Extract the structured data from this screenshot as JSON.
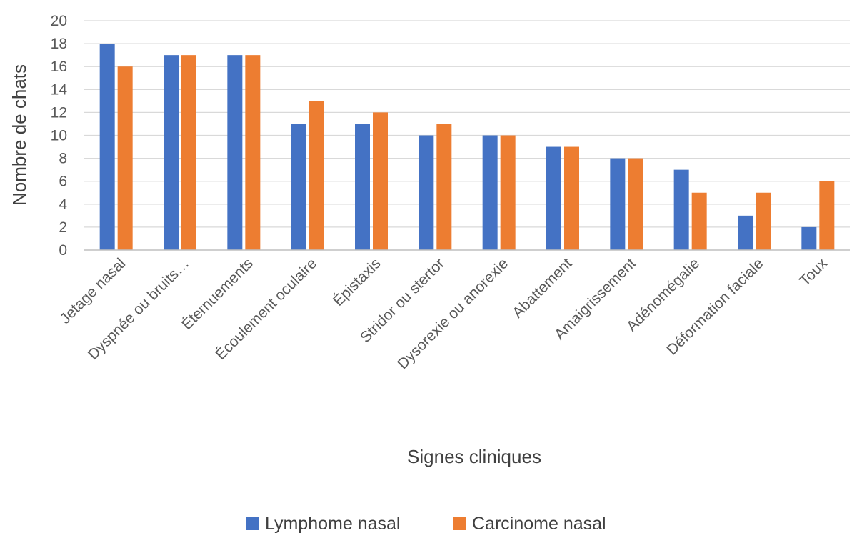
{
  "chart_data": {
    "type": "bar",
    "title": "",
    "xlabel": "Signes cliniques",
    "ylabel": "Nombre de chats",
    "ylim": [
      0,
      20
    ],
    "yticks": [
      0,
      2,
      4,
      6,
      8,
      10,
      12,
      14,
      16,
      18,
      20
    ],
    "grid": true,
    "legend_position": "bottom",
    "categories": [
      "Jetage nasal",
      "Dyspnée ou bruits…",
      "Éternuements",
      "Écoulement oculaire",
      "Épistaxis",
      "Stridor ou stertor",
      "Dysorexie ou anorexie",
      "Abattement",
      "Amaigrissement",
      "Adénomégalie",
      "Déformation faciale",
      "Toux"
    ],
    "series": [
      {
        "name": "Lymphome nasal",
        "color": "#4472C4",
        "values": [
          18,
          17,
          17,
          11,
          11,
          10,
          10,
          9,
          8,
          7,
          3,
          2
        ]
      },
      {
        "name": "Carcinome nasal",
        "color": "#ED7D31",
        "values": [
          16,
          17,
          17,
          13,
          12,
          11,
          10,
          9,
          8,
          5,
          5,
          6
        ]
      }
    ]
  }
}
